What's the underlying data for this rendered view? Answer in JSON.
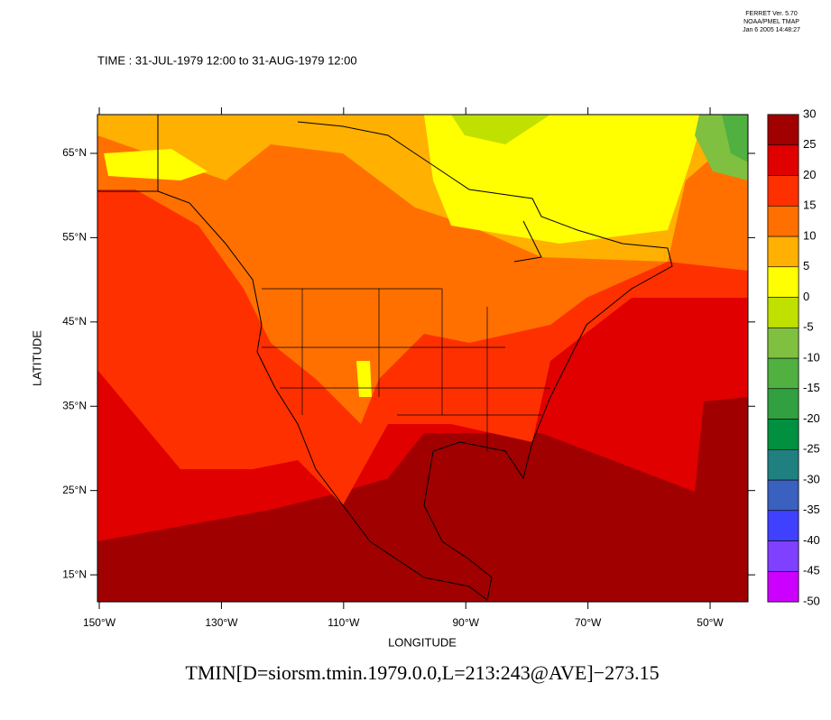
{
  "meta": {
    "version": "FERRET Ver. 5.70",
    "lab": "NOAA/PMEL TMAP",
    "date": "Jan  6 2005 14:48:27"
  },
  "title": "TIME : 31-JUL-1979 12:00 to 31-AUG-1979 12:00",
  "map": {
    "type": "map",
    "xlabel": "LONGITUDE",
    "ylabel": "LATITUDE",
    "xlim": [
      -150.3,
      -43.8
    ],
    "ylim": [
      11.8,
      69.6
    ],
    "xticks": [
      {
        "value": -150,
        "label": "150°W"
      },
      {
        "value": -130,
        "label": "130°W"
      },
      {
        "value": -110,
        "label": "110°W"
      },
      {
        "value": -90,
        "label": "90°W"
      },
      {
        "value": -70,
        "label": "70°W"
      },
      {
        "value": -50,
        "label": "50°W"
      }
    ],
    "yticks": [
      {
        "value": 65,
        "label": "65°N"
      },
      {
        "value": 55,
        "label": "55°N"
      },
      {
        "value": 45,
        "label": "45°N"
      },
      {
        "value": 35,
        "label": "35°N"
      },
      {
        "value": 25,
        "label": "25°N"
      },
      {
        "value": 15,
        "label": "15°N"
      }
    ]
  },
  "colorbar": {
    "levels": [
      -50,
      -45,
      -40,
      -35,
      -30,
      -25,
      -20,
      -15,
      -10,
      -5,
      0,
      5,
      10,
      15,
      20,
      25,
      30
    ],
    "colors": [
      "#cc00ff",
      "#8040ff",
      "#4040ff",
      "#3a60c0",
      "#208080",
      "#009040",
      "#30a040",
      "#50b040",
      "#80c040",
      "#c0e000",
      "#ffff00",
      "#ffb000",
      "#ff7000",
      "#ff3000",
      "#e00000",
      "#a00000"
    ]
  },
  "caption": "TMIN[D=siorsm.tmin.1979.0.0,L=213:243@AVE]−273.15"
}
